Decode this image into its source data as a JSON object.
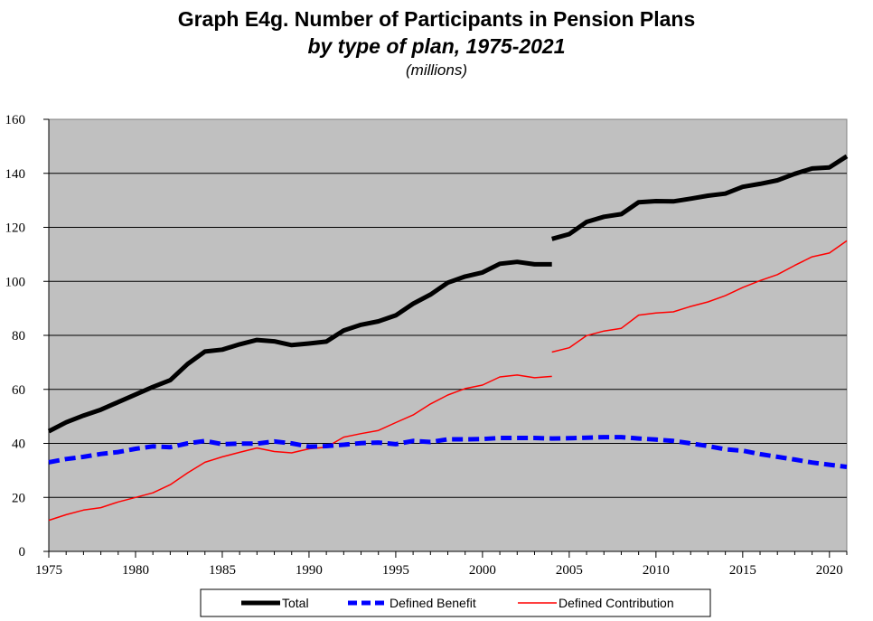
{
  "chart_data": {
    "type": "line",
    "title": "Graph E4g. Number of Participants in Pension Plans",
    "subtitle": "by type of plan, 1975-2021",
    "units": "(millions)",
    "xlim": [
      1975,
      2021
    ],
    "ylim": [
      0,
      160
    ],
    "x_ticks": [
      1975,
      1980,
      1985,
      1990,
      1995,
      2000,
      2005,
      2010,
      2015,
      2020
    ],
    "y_ticks": [
      0,
      20,
      40,
      60,
      80,
      100,
      120,
      140,
      160
    ],
    "grid": true,
    "legend_position": "bottom",
    "series": [
      {
        "name": "Total",
        "color": "#000000",
        "style": "solid-thick",
        "segments": [
          {
            "x": [
              1975,
              1976,
              1977,
              1978,
              1979,
              1980,
              1981,
              1982,
              1983,
              1984,
              1985,
              1986,
              1987,
              1988,
              1989,
              1990,
              1991,
              1992,
              1993,
              1994,
              1995,
              1996,
              1997,
              1998,
              1999,
              2000,
              2001,
              2002,
              2003,
              2004
            ],
            "y": [
              44.5,
              47.8,
              50.3,
              52.5,
              55.3,
              58.1,
              60.9,
              63.4,
              69.4,
              74.0,
              74.7,
              76.7,
              78.3,
              77.8,
              76.4,
              77.0,
              77.7,
              81.8,
              83.9,
              85.2,
              87.4,
              91.7,
              95.1,
              99.5,
              101.8,
              103.3,
              106.5,
              107.2,
              106.3,
              106.3
            ]
          },
          {
            "x": [
              2004,
              2005,
              2006,
              2007,
              2008,
              2009,
              2010,
              2011,
              2012,
              2013,
              2014,
              2015,
              2016,
              2017,
              2018,
              2019,
              2020,
              2021
            ],
            "y": [
              115.7,
              117.5,
              122.0,
              123.9,
              124.9,
              129.3,
              129.7,
              129.6,
              130.6,
              131.7,
              132.5,
              135.0,
              136.1,
              137.4,
              139.8,
              141.8,
              142.2,
              146.3
            ]
          }
        ]
      },
      {
        "name": "Defined Benefit",
        "color": "#0000ff",
        "style": "dashed-thick",
        "segments": [
          {
            "x": [
              1975,
              1976,
              1977,
              1978,
              1979,
              1980,
              1981,
              1982,
              1983,
              1984,
              1985,
              1986,
              1987,
              1988,
              1989,
              1990,
              1991,
              1992,
              1993,
              1994,
              1995,
              1996,
              1997,
              1998,
              1999,
              2000,
              2001,
              2002,
              2003,
              2004,
              2005,
              2006,
              2007,
              2008,
              2009,
              2010,
              2011,
              2012,
              2013,
              2014,
              2015,
              2016,
              2017,
              2018,
              2019,
              2020,
              2021
            ],
            "y": [
              33.0,
              34.2,
              35.0,
              36.1,
              36.8,
              38.0,
              38.9,
              38.6,
              40.0,
              40.9,
              39.7,
              39.9,
              39.9,
              40.7,
              40.0,
              38.8,
              39.0,
              39.5,
              40.1,
              40.3,
              39.7,
              40.9,
              40.5,
              41.5,
              41.5,
              41.6,
              42.0,
              42.0,
              42.0,
              41.8,
              41.9,
              42.1,
              42.3,
              42.3,
              41.8,
              41.4,
              40.9,
              40.0,
              39.0,
              37.8,
              37.3,
              36.0,
              35.0,
              34.0,
              32.9,
              32.1,
              31.3
            ]
          }
        ]
      },
      {
        "name": "Defined Contribution",
        "color": "#ff0000",
        "style": "solid-thin",
        "segments": [
          {
            "x": [
              1975,
              1976,
              1977,
              1978,
              1979,
              1980,
              1981,
              1982,
              1983,
              1984,
              1985,
              1986,
              1987,
              1988,
              1989,
              1990,
              1991,
              1992,
              1993,
              1994,
              1995,
              1996,
              1997,
              1998,
              1999,
              2000,
              2001,
              2002,
              2003,
              2004
            ],
            "y": [
              11.5,
              13.6,
              15.3,
              16.2,
              18.3,
              20.0,
              21.7,
              24.7,
              29.1,
              33.0,
              35.0,
              36.7,
              38.3,
              37.0,
              36.5,
              38.0,
              38.6,
              42.3,
              43.6,
              44.8,
              47.7,
              50.5,
              54.6,
              57.9,
              60.3,
              61.6,
              64.6,
              65.3,
              64.3,
              64.8
            ]
          },
          {
            "x": [
              2004,
              2005,
              2006,
              2007,
              2008,
              2009,
              2010,
              2011,
              2012,
              2013,
              2014,
              2015,
              2016,
              2017,
              2018,
              2019,
              2020,
              2021
            ],
            "y": [
              73.8,
              75.4,
              79.9,
              81.6,
              82.6,
              87.5,
              88.3,
              88.7,
              90.7,
              92.4,
              94.7,
              97.7,
              100.3,
              102.5,
              105.9,
              109.1,
              110.5,
              115.0
            ]
          }
        ]
      }
    ]
  }
}
